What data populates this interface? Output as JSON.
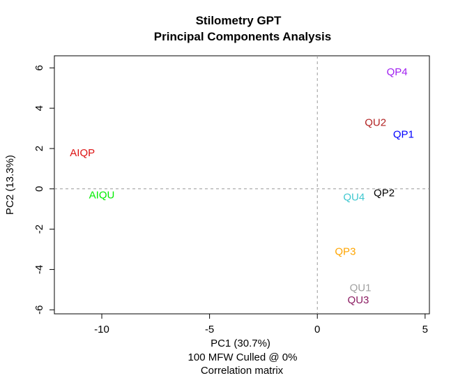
{
  "chart_data": {
    "type": "scatter",
    "title": "Stilometry GPT",
    "subtitle": "Principal Components Analysis",
    "xlabel": "PC1 (30.7%)",
    "ylabel": "PC2 (13.3%)",
    "caption_lines": [
      "100 MFW  Culled @ 0%",
      "Correlation matrix"
    ],
    "xlim": [
      -12.2,
      5.2
    ],
    "ylim": [
      -6.2,
      6.6
    ],
    "x_ticks": [
      -10,
      -5,
      0,
      5
    ],
    "y_ticks": [
      -6,
      -4,
      -2,
      0,
      2,
      4,
      6
    ],
    "x_tick_labels": [
      "-10",
      "-5",
      "0",
      "5"
    ],
    "y_tick_labels": [
      "-6",
      "-4",
      "-2",
      "0",
      "2",
      "4",
      "6"
    ],
    "reference_lines": {
      "x": 0,
      "y": 0,
      "style": "dashed",
      "color": "#999999"
    },
    "grid": false,
    "points": [
      {
        "label": "QP4",
        "x": 3.7,
        "y": 5.8,
        "color": "#A020F0"
      },
      {
        "label": "QU2",
        "x": 2.7,
        "y": 3.3,
        "color": "#B22222"
      },
      {
        "label": "QP1",
        "x": 4.0,
        "y": 2.7,
        "color": "#0000FF"
      },
      {
        "label": "AIQP",
        "x": -10.9,
        "y": 1.8,
        "color": "#DD1111"
      },
      {
        "label": "QP2",
        "x": 3.1,
        "y": -0.2,
        "color": "#000000"
      },
      {
        "label": "AIQU",
        "x": -10.0,
        "y": -0.3,
        "color": "#00EE00"
      },
      {
        "label": "QU4",
        "x": 1.7,
        "y": -0.4,
        "color": "#40C8D0"
      },
      {
        "label": "QP3",
        "x": 1.3,
        "y": -3.1,
        "color": "#FFA500"
      },
      {
        "label": "QU1",
        "x": 2.0,
        "y": -4.9,
        "color": "#A0A0A0"
      },
      {
        "label": "QU3",
        "x": 1.9,
        "y": -5.5,
        "color": "#8B1C62"
      }
    ]
  }
}
